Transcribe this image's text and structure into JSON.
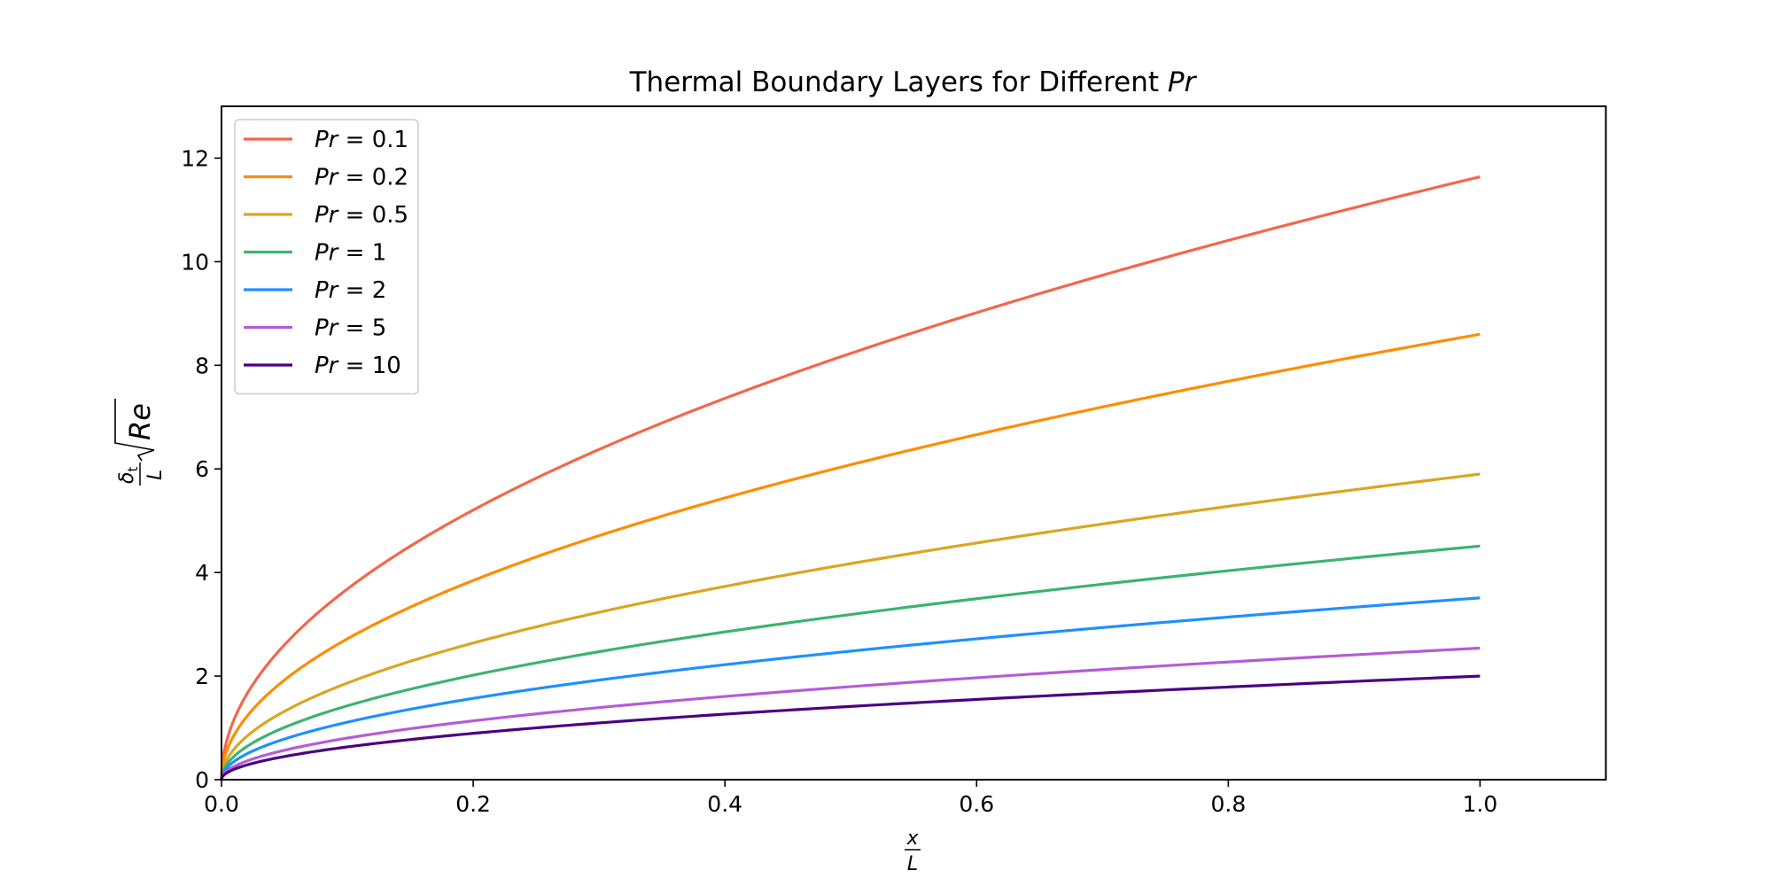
{
  "chart_data": {
    "type": "line",
    "title": {
      "text": "Thermal Boundary Layers for Different ",
      "var": "Pr"
    },
    "xlabel": {
      "num": "x",
      "den": "L"
    },
    "ylabel": {
      "num": "δ",
      "num_sub": "t",
      "den": "L",
      "root": "Re"
    },
    "xlim": [
      0,
      1.1
    ],
    "ylim": [
      0,
      13
    ],
    "xticks": [
      0.0,
      0.2,
      0.4,
      0.6,
      0.8,
      1.0
    ],
    "xtick_labels": [
      "0.0",
      "0.2",
      "0.4",
      "0.6",
      "0.8",
      "1.0"
    ],
    "yticks": [
      0,
      2,
      4,
      6,
      8,
      10,
      12
    ],
    "ytick_labels": [
      "0",
      "2",
      "4",
      "6",
      "8",
      "10",
      "12"
    ],
    "grid": false,
    "legend_position": "top-left",
    "x_range": [
      0,
      1
    ],
    "series": [
      {
        "var": "Pr",
        "eq": " = ",
        "value": "0.1",
        "color": "#f4664a",
        "y_at_x1": 11.64
      },
      {
        "var": "Pr",
        "eq": " = ",
        "value": "0.2",
        "color": "#ff8c00",
        "y_at_x1": 8.6
      },
      {
        "var": "Pr",
        "eq": " = ",
        "value": "0.5",
        "color": "#daa520",
        "y_at_x1": 5.9
      },
      {
        "var": "Pr",
        "eq": " = ",
        "value": "1",
        "color": "#3cb371",
        "y_at_x1": 4.51
      },
      {
        "var": "Pr",
        "eq": " = ",
        "value": "2",
        "color": "#1e90ff",
        "y_at_x1": 3.51
      },
      {
        "var": "Pr",
        "eq": " = ",
        "value": "5",
        "color": "#b45cd6",
        "y_at_x1": 2.54
      },
      {
        "var": "Pr",
        "eq": " = ",
        "value": "10",
        "color": "#4b0082",
        "y_at_x1": 2.0
      }
    ]
  }
}
